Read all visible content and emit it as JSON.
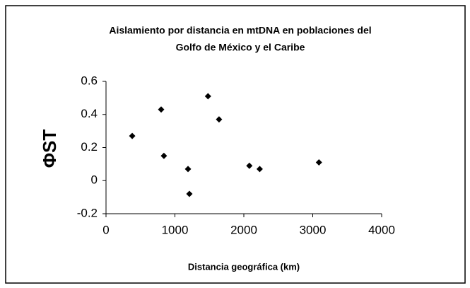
{
  "chart_data": {
    "type": "scatter",
    "title": [
      "Aislamiento por distancia en mtDNA en poblaciones del",
      "Golfo de México y el Caribe"
    ],
    "x_label": "Distancia geográfica (km)",
    "y_label": "ΦST",
    "x": [
      380,
      800,
      840,
      1190,
      1210,
      1480,
      1640,
      2080,
      2230,
      3090
    ],
    "values": [
      0.27,
      0.43,
      0.15,
      0.07,
      -0.08,
      0.51,
      0.37,
      0.09,
      0.07,
      0.11
    ],
    "color": "#000000",
    "xlim": [
      0,
      4000
    ],
    "xticks": [
      0,
      1000,
      2000,
      3000,
      4000
    ],
    "ylim": [
      -0.2,
      0.6
    ],
    "yticks": [
      {
        "value": 0.6,
        "label": "0.6"
      },
      {
        "value": 0.4,
        "label": "0.4"
      },
      {
        "value": 0.2,
        "label": "0.2"
      },
      0,
      {
        "value": -0.2,
        "label": "-0.2"
      }
    ],
    "grid": false
  }
}
